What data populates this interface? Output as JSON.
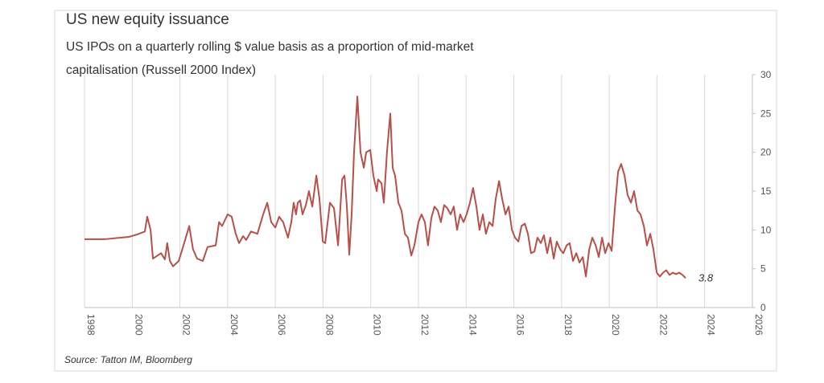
{
  "chart_data": {
    "type": "line",
    "title": "US new equity issuance",
    "subtitle": [
      "US IPOs on a quarterly rolling $ value basis as a proportion  of mid-market",
      "capitalisation (Russell 2000 Index)"
    ],
    "source": "Source: Tatton IM, Bloomberg",
    "x": [
      1998.0,
      1998.84,
      1999.86,
      2000.19,
      2000.53,
      2000.63,
      2000.77,
      2000.87,
      2001.21,
      2001.37,
      2001.47,
      2001.58,
      2001.71,
      2001.95,
      2002.15,
      2002.39,
      2002.55,
      2002.72,
      2002.96,
      2003.16,
      2003.5,
      2003.64,
      2003.77,
      2004.0,
      2004.17,
      2004.34,
      2004.48,
      2004.65,
      2004.78,
      2004.98,
      2005.25,
      2005.49,
      2005.66,
      2005.83,
      2006.0,
      2006.16,
      2006.33,
      2006.53,
      2006.67,
      2006.77,
      2006.87,
      2006.94,
      2007.04,
      2007.14,
      2007.28,
      2007.41,
      2007.55,
      2007.72,
      2007.85,
      2007.99,
      2008.09,
      2008.29,
      2008.46,
      2008.63,
      2008.8,
      2008.9,
      2009.0,
      2009.1,
      2009.2,
      2009.3,
      2009.44,
      2009.57,
      2009.71,
      2009.81,
      2009.98,
      2010.11,
      2010.25,
      2010.31,
      2010.45,
      2010.55,
      2010.68,
      2010.82,
      2010.92,
      2011.02,
      2011.16,
      2011.29,
      2011.43,
      2011.56,
      2011.7,
      2011.83,
      2012.0,
      2012.13,
      2012.27,
      2012.4,
      2012.54,
      2012.67,
      2012.81,
      2012.94,
      2013.08,
      2013.21,
      2013.35,
      2013.48,
      2013.62,
      2013.75,
      2013.89,
      2014.02,
      2014.16,
      2014.29,
      2014.43,
      2014.56,
      2014.7,
      2014.83,
      2014.97,
      2015.11,
      2015.24,
      2015.38,
      2015.51,
      2015.65,
      2015.78,
      2015.92,
      2016.05,
      2016.19,
      2016.32,
      2016.46,
      2016.59,
      2016.72,
      2016.86,
      2016.99,
      2017.13,
      2017.26,
      2017.4,
      2017.53,
      2017.67,
      2017.8,
      2017.94,
      2018.07,
      2018.21,
      2018.34,
      2018.48,
      2018.62,
      2018.75,
      2018.89,
      2019.02,
      2019.16,
      2019.29,
      2019.43,
      2019.56,
      2019.7,
      2019.83,
      2019.97,
      2020.1,
      2020.24,
      2020.37,
      2020.5,
      2020.64,
      2020.77,
      2020.91,
      2021.04,
      2021.18,
      2021.31,
      2021.45,
      2021.58,
      2021.72,
      2021.85,
      2021.99,
      2022.12,
      2022.26,
      2022.39,
      2022.53,
      2022.66,
      2022.8,
      2022.93,
      2023.07,
      2023.2
    ],
    "series": [
      {
        "color": "#b5514a",
        "values": [
          8.8,
          8.8,
          9.1,
          9.4,
          9.8,
          11.7,
          10.0,
          6.3,
          7.0,
          6.2,
          8.3,
          6.0,
          5.3,
          6.0,
          8.0,
          10.5,
          7.5,
          6.3,
          6.0,
          7.8,
          8.0,
          11.0,
          10.5,
          12.0,
          11.7,
          9.5,
          8.3,
          9.2,
          8.7,
          9.8,
          9.5,
          12.0,
          13.5,
          11.0,
          10.3,
          11.7,
          11.0,
          9.0,
          11.0,
          13.5,
          12.0,
          13.5,
          13.8,
          12.0,
          13.2,
          15.0,
          13.0,
          17.0,
          14.0,
          8.5,
          8.3,
          13.5,
          12.8,
          8.0,
          16.5,
          17.0,
          13.0,
          6.8,
          12.0,
          20.0,
          27.2,
          20.0,
          18.0,
          20.0,
          20.3,
          17.0,
          15.0,
          16.5,
          16.0,
          13.5,
          20.0,
          25.0,
          18.0,
          17.0,
          13.5,
          12.5,
          9.5,
          9.0,
          6.7,
          8.0,
          11.0,
          12.0,
          11.0,
          8.0,
          11.5,
          13.0,
          12.5,
          11.0,
          13.2,
          12.8,
          12.0,
          13.0,
          10.0,
          12.0,
          11.0,
          12.0,
          13.5,
          15.4,
          13.0,
          10.0,
          12.0,
          9.5,
          11.0,
          10.5,
          14.0,
          16.3,
          14.0,
          12.0,
          13.0,
          10.0,
          9.0,
          8.5,
          10.5,
          10.8,
          9.5,
          7.0,
          7.2,
          9.0,
          8.3,
          9.3,
          7.0,
          9.0,
          6.3,
          8.5,
          7.5,
          7.0,
          8.0,
          8.3,
          6.0,
          7.0,
          5.8,
          6.5,
          4.0,
          7.5,
          9.0,
          8.0,
          6.5,
          9.0,
          7.0,
          8.3,
          7.3,
          13.0,
          17.5,
          18.5,
          17.0,
          14.5,
          13.5,
          15.0,
          12.5,
          12.0,
          10.5,
          8.0,
          9.5,
          7.5,
          4.5,
          4.0,
          4.5,
          4.8,
          4.2,
          4.5,
          4.3,
          4.5,
          4.2,
          3.8
        ]
      }
    ],
    "annotations": [
      {
        "x": 2023.2,
        "y": 3.8,
        "text": "3.8"
      }
    ],
    "xlim": [
      1998,
      2026
    ],
    "xticks": [
      1998,
      2000,
      2002,
      2004,
      2006,
      2008,
      2010,
      2012,
      2014,
      2016,
      2018,
      2020,
      2022,
      2024,
      2026
    ],
    "ylim": [
      0,
      30
    ],
    "yticks": [
      0,
      5,
      10,
      15,
      20,
      25,
      30
    ],
    "grid": true
  }
}
